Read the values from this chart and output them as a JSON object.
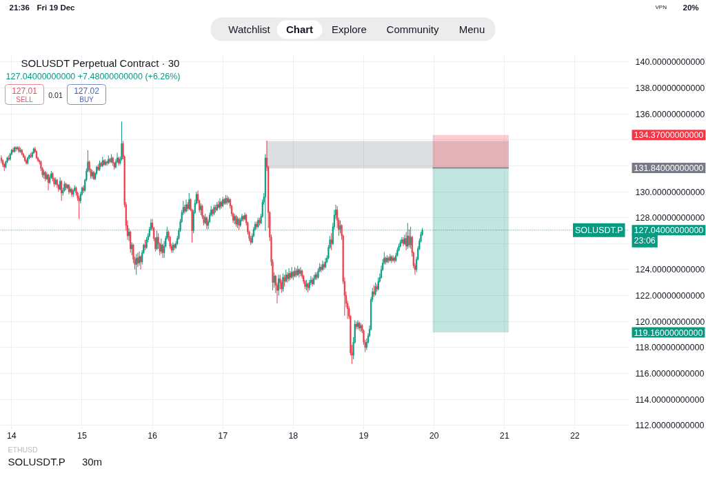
{
  "chart_data": {
    "type": "candlestick",
    "title": "SOLUSDT Perpetual Contract · 30",
    "subtitle": "127.04000000000 +7.48000000000 (+6.26%)",
    "annotations": [
      "134.37000000000",
      "131.84000000000",
      "127.04000000000",
      "119.16000000000",
      "23:06",
      "127.01",
      "SELL",
      "0.01",
      "127.02",
      "BUY",
      "21:36",
      "Fri 19 Dec",
      "VPN",
      "20%",
      "Watchlist",
      "Chart",
      "Explore",
      "Community",
      "Menu",
      "ETHUSD",
      "SOLUSDT.P",
      "30m"
    ],
    "x": [
      13.854,
      13.875,
      13.896,
      13.917,
      13.938,
      13.958,
      13.979,
      14,
      14.021,
      14.042,
      14.063,
      14.083,
      14.104,
      14.125,
      14.146,
      14.167,
      14.188,
      14.208,
      14.229,
      14.25,
      14.271,
      14.292,
      14.313,
      14.333,
      14.354,
      14.375,
      14.396,
      14.417,
      14.438,
      14.458,
      14.479,
      14.5,
      14.521,
      14.542,
      14.563,
      14.583,
      14.604,
      14.625,
      14.646,
      14.667,
      14.688,
      14.708,
      14.729,
      14.75,
      14.771,
      14.792,
      14.813,
      14.833,
      14.854,
      14.875,
      14.896,
      14.917,
      14.938,
      14.958,
      14.979,
      15,
      15.021,
      15.042,
      15.063,
      15.083,
      15.104,
      15.125,
      15.146,
      15.167,
      15.188,
      15.208,
      15.229,
      15.25,
      15.271,
      15.292,
      15.313,
      15.333,
      15.354,
      15.375,
      15.396,
      15.417,
      15.438,
      15.458,
      15.479,
      15.5,
      15.521,
      15.542,
      15.563,
      15.583,
      15.604,
      15.625,
      15.646,
      15.667,
      15.688,
      15.708,
      15.729,
      15.75,
      15.771,
      15.792,
      15.813,
      15.833,
      15.854,
      15.875,
      15.896,
      15.917,
      15.938,
      15.958,
      15.979,
      16,
      16.021,
      16.042,
      16.063,
      16.083,
      16.104,
      16.125,
      16.146,
      16.167,
      16.188,
      16.208,
      16.229,
      16.25,
      16.271,
      16.292,
      16.313,
      16.333,
      16.354,
      16.375,
      16.396,
      16.417,
      16.438,
      16.458,
      16.479,
      16.5,
      16.521,
      16.542,
      16.563,
      16.583,
      16.604,
      16.625,
      16.646,
      16.667,
      16.688,
      16.708,
      16.729,
      16.75,
      16.771,
      16.792,
      16.813,
      16.833,
      16.854,
      16.875,
      16.896,
      16.917,
      16.938,
      16.958,
      16.979,
      17,
      17.021,
      17.042,
      17.063,
      17.083,
      17.104,
      17.125,
      17.146,
      17.167,
      17.188,
      17.208,
      17.229,
      17.25,
      17.271,
      17.292,
      17.313,
      17.333,
      17.354,
      17.375,
      17.396,
      17.417,
      17.438,
      17.458,
      17.479,
      17.5,
      17.521,
      17.542,
      17.563,
      17.583,
      17.604,
      17.625,
      17.646,
      17.667,
      17.688,
      17.708,
      17.729,
      17.75,
      17.771,
      17.792,
      17.813,
      17.833,
      17.854,
      17.875,
      17.896,
      17.917,
      17.938,
      17.958,
      17.979,
      18,
      18.021,
      18.042,
      18.063,
      18.083,
      18.104,
      18.125,
      18.146,
      18.167,
      18.188,
      18.208,
      18.229,
      18.25,
      18.271,
      18.292,
      18.313,
      18.333,
      18.354,
      18.375,
      18.396,
      18.417,
      18.438,
      18.458,
      18.479,
      18.5,
      18.521,
      18.542,
      18.563,
      18.583,
      18.604,
      18.625,
      18.646,
      18.667,
      18.688,
      18.708,
      18.729,
      18.75,
      18.771,
      18.792,
      18.813,
      18.833,
      18.854,
      18.875,
      18.896,
      18.917,
      18.938,
      18.958,
      18.979,
      19,
      19.021,
      19.042,
      19.063,
      19.083,
      19.104,
      19.125,
      19.146,
      19.167,
      19.188,
      19.208,
      19.229,
      19.25,
      19.271,
      19.292,
      19.313,
      19.333,
      19.354,
      19.375,
      19.396,
      19.417,
      19.438,
      19.458,
      19.479,
      19.5,
      19.521,
      19.542,
      19.563,
      19.583,
      19.604,
      19.625,
      19.646,
      19.667,
      19.688,
      19.708,
      19.729,
      19.75,
      19.771,
      19.792,
      19.813,
      19.833
    ],
    "ohlc": [
      [
        132.6,
        132.8,
        132.2,
        132.4
      ],
      [
        132.4,
        132.5,
        131.9,
        132.1
      ],
      [
        132.1,
        132.2,
        131.6,
        131.9
      ],
      [
        131.9,
        132.4,
        131.8,
        132.3
      ],
      [
        132.3,
        132.7,
        132.2,
        132.6
      ],
      [
        132.6,
        132.8,
        132.4,
        132.5
      ],
      [
        132.5,
        133.0,
        132.4,
        132.9
      ],
      [
        132.9,
        133.3,
        132.8,
        133.2
      ],
      [
        133.2,
        133.4,
        133.0,
        133.1
      ],
      [
        133.1,
        133.5,
        133.0,
        133.4
      ],
      [
        133.4,
        133.5,
        133.1,
        133.3
      ],
      [
        133.3,
        133.5,
        133.2,
        133.4
      ],
      [
        133.4,
        133.5,
        133.0,
        133.1
      ],
      [
        133.1,
        133.4,
        133.0,
        133.2
      ],
      [
        133.2,
        133.3,
        132.8,
        132.9
      ],
      [
        132.9,
        133.0,
        132.6,
        132.7
      ],
      [
        132.7,
        132.8,
        132.3,
        132.4
      ],
      [
        132.4,
        132.5,
        132.1,
        132.2
      ],
      [
        132.2,
        132.7,
        132.1,
        132.6
      ],
      [
        132.6,
        132.9,
        132.5,
        132.8
      ],
      [
        132.8,
        133.0,
        132.6,
        132.7
      ],
      [
        132.7,
        133.1,
        132.6,
        133.0
      ],
      [
        133.0,
        133.4,
        132.9,
        133.3
      ],
      [
        133.3,
        133.45,
        133.0,
        133.1
      ],
      [
        133.1,
        133.2,
        132.5,
        132.6
      ],
      [
        132.6,
        132.7,
        132.3,
        132.4
      ],
      [
        132.4,
        132.5,
        132.1,
        132.3
      ],
      [
        132.3,
        132.4,
        131.6,
        131.8
      ],
      [
        131.8,
        131.9,
        131.1,
        131.3
      ],
      [
        131.3,
        131.7,
        131.0,
        131.5
      ],
      [
        131.5,
        131.6,
        130.8,
        131.0
      ],
      [
        131.0,
        131.5,
        130.9,
        131.3
      ],
      [
        131.3,
        131.4,
        130.1,
        130.7
      ],
      [
        130.7,
        131.3,
        130.6,
        131.1
      ],
      [
        131.1,
        131.6,
        131.0,
        131.4
      ],
      [
        131.4,
        131.5,
        130.8,
        131.0
      ],
      [
        131.0,
        131.1,
        130.4,
        130.6
      ],
      [
        130.6,
        131.1,
        130.5,
        130.9
      ],
      [
        130.9,
        131.0,
        130.3,
        130.5
      ],
      [
        130.5,
        130.6,
        130.0,
        130.2
      ],
      [
        130.2,
        131.1,
        130.1,
        130.8
      ],
      [
        130.8,
        130.9,
        129.3,
        129.9
      ],
      [
        129.9,
        130.3,
        129.7,
        130.1
      ],
      [
        130.1,
        130.8,
        130.0,
        130.6
      ],
      [
        130.6,
        130.7,
        130.1,
        130.3
      ],
      [
        130.3,
        130.6,
        130.2,
        130.5
      ],
      [
        130.5,
        130.6,
        129.8,
        130.0
      ],
      [
        130.0,
        130.4,
        129.9,
        130.2
      ],
      [
        130.2,
        130.3,
        129.6,
        129.8
      ],
      [
        129.8,
        130.2,
        129.6,
        130.1
      ],
      [
        130.1,
        130.5,
        130.0,
        130.3
      ],
      [
        130.3,
        130.4,
        129.7,
        129.9
      ],
      [
        129.9,
        130.0,
        129.3,
        129.5
      ],
      [
        129.5,
        129.7,
        127.9,
        129.3
      ],
      [
        129.3,
        130.0,
        129.1,
        129.8
      ],
      [
        129.8,
        130.4,
        129.7,
        130.3
      ],
      [
        130.3,
        130.5,
        129.9,
        130.1
      ],
      [
        130.1,
        131.0,
        130.0,
        130.9
      ],
      [
        130.9,
        131.8,
        130.8,
        131.6
      ],
      [
        131.6,
        133.2,
        131.5,
        132.3
      ],
      [
        132.3,
        132.4,
        131.5,
        131.7
      ],
      [
        131.7,
        131.8,
        131.0,
        131.2
      ],
      [
        131.2,
        131.7,
        131.0,
        131.5
      ],
      [
        131.5,
        131.6,
        130.9,
        131.0
      ],
      [
        131.0,
        131.5,
        130.9,
        131.4
      ],
      [
        131.4,
        132.0,
        131.3,
        131.9
      ],
      [
        131.9,
        132.1,
        131.6,
        131.7
      ],
      [
        131.7,
        132.4,
        131.6,
        132.2
      ],
      [
        132.2,
        132.3,
        131.9,
        132.0
      ],
      [
        132.0,
        132.7,
        131.9,
        132.4
      ],
      [
        132.4,
        132.5,
        132.0,
        132.1
      ],
      [
        132.1,
        132.5,
        132.0,
        132.3
      ],
      [
        132.3,
        132.4,
        132.0,
        132.2
      ],
      [
        132.2,
        132.8,
        132.1,
        132.5
      ],
      [
        132.5,
        132.6,
        132.2,
        132.3
      ],
      [
        132.3,
        132.9,
        132.2,
        132.6
      ],
      [
        132.6,
        132.7,
        132.0,
        132.2
      ],
      [
        132.2,
        132.3,
        131.7,
        131.9
      ],
      [
        131.9,
        132.5,
        131.8,
        132.3
      ],
      [
        132.3,
        133.0,
        132.2,
        132.6
      ],
      [
        132.6,
        132.7,
        132.0,
        132.2
      ],
      [
        132.2,
        132.7,
        132.1,
        132.5
      ],
      [
        132.5,
        135.4,
        132.4,
        133.7
      ],
      [
        133.7,
        133.9,
        132.5,
        132.7
      ],
      [
        132.7,
        132.8,
        128.8,
        129.0
      ],
      [
        129.0,
        129.2,
        127.0,
        127.4
      ],
      [
        127.4,
        127.8,
        126.3,
        126.6
      ],
      [
        126.6,
        127.2,
        126.2,
        126.9
      ],
      [
        126.9,
        127.0,
        125.3,
        125.6
      ],
      [
        125.6,
        126.1,
        125.1,
        125.9
      ],
      [
        125.9,
        126.0,
        124.5,
        124.8
      ],
      [
        124.8,
        125.0,
        124.0,
        124.4
      ],
      [
        124.4,
        125.2,
        123.6,
        124.9
      ],
      [
        124.9,
        125.3,
        124.2,
        124.5
      ],
      [
        124.5,
        125.4,
        124.3,
        125.0
      ],
      [
        125.0,
        125.1,
        124.0,
        124.6
      ],
      [
        124.6,
        125.5,
        124.4,
        125.3
      ],
      [
        125.3,
        126.0,
        125.2,
        125.9
      ],
      [
        125.9,
        126.3,
        125.5,
        125.7
      ],
      [
        125.7,
        126.5,
        125.6,
        126.3
      ],
      [
        126.3,
        126.8,
        126.1,
        126.6
      ],
      [
        126.6,
        127.3,
        126.5,
        127.1
      ],
      [
        127.1,
        127.9,
        127.0,
        127.6
      ],
      [
        127.6,
        127.9,
        127.0,
        127.2
      ],
      [
        127.2,
        127.3,
        126.2,
        126.4
      ],
      [
        126.4,
        126.5,
        125.4,
        125.6
      ],
      [
        125.6,
        127.0,
        125.5,
        126.5
      ],
      [
        126.5,
        126.8,
        125.6,
        126.0
      ],
      [
        126.0,
        126.1,
        125.1,
        125.4
      ],
      [
        125.4,
        126.4,
        125.2,
        125.9
      ],
      [
        125.9,
        126.0,
        124.9,
        125.3
      ],
      [
        125.3,
        126.2,
        124.9,
        125.8
      ],
      [
        125.8,
        126.6,
        125.7,
        126.4
      ],
      [
        126.4,
        127.3,
        126.3,
        126.9
      ],
      [
        126.9,
        127.0,
        126.2,
        126.5
      ],
      [
        126.5,
        126.6,
        125.6,
        125.8
      ],
      [
        125.8,
        126.0,
        125.3,
        125.5
      ],
      [
        125.5,
        126.1,
        125.3,
        125.9
      ],
      [
        125.9,
        126.0,
        125.5,
        125.7
      ],
      [
        125.7,
        126.2,
        125.6,
        126.0
      ],
      [
        126.0,
        126.6,
        125.9,
        126.4
      ],
      [
        126.4,
        127.2,
        126.3,
        127.0
      ],
      [
        127.0,
        127.9,
        126.9,
        127.7
      ],
      [
        127.7,
        128.6,
        127.6,
        128.4
      ],
      [
        128.4,
        129.3,
        128.2,
        128.8
      ],
      [
        128.8,
        129.0,
        128.3,
        128.5
      ],
      [
        128.5,
        129.4,
        128.4,
        129.0
      ],
      [
        129.0,
        129.2,
        128.5,
        128.7
      ],
      [
        128.7,
        129.9,
        128.6,
        129.4
      ],
      [
        129.4,
        129.5,
        128.5,
        128.6
      ],
      [
        128.6,
        128.7,
        126.1,
        127.0
      ],
      [
        127.0,
        128.6,
        126.8,
        128.4
      ],
      [
        128.4,
        129.4,
        128.3,
        129.1
      ],
      [
        129.1,
        130.0,
        129.0,
        129.8
      ],
      [
        129.8,
        130.1,
        129.1,
        129.3
      ],
      [
        129.3,
        129.4,
        128.4,
        128.6
      ],
      [
        128.6,
        129.1,
        128.2,
        128.9
      ],
      [
        128.9,
        129.0,
        127.9,
        128.1
      ],
      [
        128.1,
        128.2,
        127.4,
        127.6
      ],
      [
        127.6,
        128.3,
        127.5,
        128.0
      ],
      [
        128.0,
        128.1,
        127.1,
        127.4
      ],
      [
        127.4,
        127.9,
        127.1,
        127.7
      ],
      [
        127.7,
        128.4,
        127.6,
        128.2
      ],
      [
        128.2,
        128.9,
        128.1,
        128.6
      ],
      [
        128.6,
        128.7,
        128.1,
        128.3
      ],
      [
        128.3,
        129.0,
        128.2,
        128.8
      ],
      [
        128.8,
        129.0,
        128.4,
        128.6
      ],
      [
        128.6,
        129.2,
        128.5,
        129.0
      ],
      [
        129.0,
        129.3,
        128.7,
        128.8
      ],
      [
        128.8,
        129.5,
        128.6,
        129.2
      ],
      [
        129.2,
        129.3,
        128.7,
        128.9
      ],
      [
        128.9,
        129.6,
        128.8,
        129.4
      ],
      [
        129.4,
        129.5,
        129.0,
        129.1
      ],
      [
        129.1,
        129.75,
        129.0,
        129.5
      ],
      [
        129.5,
        129.7,
        129.0,
        129.2
      ],
      [
        129.2,
        129.6,
        129.1,
        129.4
      ],
      [
        129.4,
        129.5,
        128.7,
        128.9
      ],
      [
        128.9,
        129.0,
        128.1,
        128.3
      ],
      [
        128.3,
        128.4,
        127.6,
        127.8
      ],
      [
        127.8,
        128.3,
        127.5,
        128.1
      ],
      [
        128.1,
        128.2,
        127.3,
        127.5
      ],
      [
        127.5,
        128.1,
        127.2,
        127.9
      ],
      [
        127.9,
        128.0,
        127.05,
        127.4
      ],
      [
        127.4,
        128.0,
        127.3,
        127.8
      ],
      [
        127.8,
        128.3,
        127.7,
        128.1
      ],
      [
        128.1,
        128.2,
        127.7,
        127.9
      ],
      [
        127.9,
        128.4,
        127.8,
        128.2
      ],
      [
        128.2,
        128.3,
        127.4,
        127.6
      ],
      [
        127.6,
        127.7,
        126.7,
        126.9
      ],
      [
        126.9,
        127.0,
        126.2,
        126.4
      ],
      [
        126.4,
        126.6,
        125.9,
        126.1
      ],
      [
        126.1,
        126.8,
        126.0,
        126.6
      ],
      [
        126.6,
        127.3,
        126.5,
        127.1
      ],
      [
        127.1,
        127.7,
        127.0,
        127.5
      ],
      [
        127.5,
        127.7,
        127.1,
        127.3
      ],
      [
        127.3,
        128.0,
        127.2,
        127.8
      ],
      [
        127.8,
        128.0,
        127.4,
        127.6
      ],
      [
        127.6,
        128.3,
        127.5,
        128.1
      ],
      [
        128.1,
        129.4,
        128.0,
        129.2
      ],
      [
        129.2,
        129.9,
        129.0,
        129.6
      ],
      [
        129.6,
        132.9,
        127.0,
        132.6
      ],
      [
        132.6,
        133.95,
        131.6,
        131.9
      ],
      [
        131.9,
        132.0,
        127.2,
        128.4
      ],
      [
        128.4,
        128.5,
        126.2,
        126.5
      ],
      [
        126.5,
        126.7,
        124.3,
        124.6
      ],
      [
        124.6,
        124.8,
        122.4,
        123.0
      ],
      [
        123.0,
        123.8,
        122.6,
        123.5
      ],
      [
        123.5,
        123.6,
        122.2,
        122.8
      ],
      [
        122.8,
        123.0,
        121.4,
        122.4
      ],
      [
        122.4,
        123.6,
        122.0,
        123.3
      ],
      [
        123.3,
        123.6,
        122.5,
        123.0
      ],
      [
        123.0,
        123.2,
        122.2,
        122.5
      ],
      [
        122.5,
        123.7,
        122.3,
        123.4
      ],
      [
        123.4,
        123.6,
        122.7,
        123.1
      ],
      [
        123.1,
        124.0,
        123.0,
        123.6
      ],
      [
        123.6,
        123.8,
        123.0,
        123.3
      ],
      [
        123.3,
        124.1,
        123.1,
        123.7
      ],
      [
        123.7,
        123.9,
        123.2,
        123.4
      ],
      [
        123.4,
        124.2,
        123.3,
        123.8
      ],
      [
        123.8,
        123.9,
        123.2,
        123.5
      ],
      [
        123.5,
        124.2,
        123.4,
        123.9
      ],
      [
        123.9,
        124.1,
        123.4,
        123.6
      ],
      [
        123.6,
        124.3,
        123.5,
        124.0
      ],
      [
        124.0,
        124.1,
        123.4,
        123.7
      ],
      [
        123.7,
        124.2,
        123.5,
        123.9
      ],
      [
        123.9,
        124.0,
        123.3,
        123.5
      ],
      [
        123.5,
        123.6,
        122.9,
        123.1
      ],
      [
        123.1,
        123.2,
        122.5,
        122.7
      ],
      [
        122.7,
        123.2,
        122.4,
        122.9
      ],
      [
        122.9,
        123.0,
        122.25,
        122.6
      ],
      [
        122.6,
        123.2,
        122.4,
        123.0
      ],
      [
        123.0,
        123.5,
        122.8,
        123.2
      ],
      [
        123.2,
        123.4,
        122.7,
        122.9
      ],
      [
        122.9,
        123.6,
        122.8,
        123.3
      ],
      [
        123.3,
        123.8,
        123.2,
        123.6
      ],
      [
        123.6,
        123.8,
        123.2,
        123.4
      ],
      [
        123.4,
        124.1,
        123.3,
        123.9
      ],
      [
        123.9,
        124.5,
        123.8,
        124.2
      ],
      [
        124.2,
        124.4,
        123.8,
        124.0
      ],
      [
        124.0,
        124.7,
        123.9,
        124.4
      ],
      [
        124.4,
        124.6,
        124.0,
        124.2
      ],
      [
        124.2,
        124.9,
        124.1,
        124.6
      ],
      [
        124.6,
        125.1,
        124.5,
        124.9
      ],
      [
        124.9,
        125.9,
        124.8,
        125.7
      ],
      [
        125.7,
        126.6,
        125.6,
        126.3
      ],
      [
        126.3,
        126.8,
        125.5,
        126.0
      ],
      [
        126.0,
        127.6,
        125.9,
        127.3
      ],
      [
        127.3,
        128.6,
        127.1,
        128.2
      ],
      [
        128.2,
        129.0,
        127.9,
        128.6
      ],
      [
        128.6,
        128.9,
        127.2,
        127.8
      ],
      [
        127.8,
        128.0,
        126.6,
        127.1
      ],
      [
        127.1,
        127.8,
        126.8,
        127.4
      ],
      [
        127.4,
        127.5,
        126.3,
        126.6
      ],
      [
        126.6,
        126.7,
        122.9,
        123.1
      ],
      [
        123.1,
        123.4,
        120.45,
        122.0
      ],
      [
        122.0,
        122.3,
        121.1,
        121.4
      ],
      [
        121.4,
        121.6,
        120.2,
        121.0
      ],
      [
        121.0,
        121.2,
        120.2,
        120.4
      ],
      [
        120.4,
        120.5,
        117.4,
        117.6
      ],
      [
        117.6,
        118.2,
        116.75,
        117.4
      ],
      [
        117.4,
        118.8,
        117.1,
        118.4
      ],
      [
        118.4,
        120.1,
        118.3,
        119.8
      ],
      [
        119.8,
        120.0,
        119.4,
        119.6
      ],
      [
        119.6,
        120.1,
        119.4,
        119.9
      ],
      [
        119.9,
        120.0,
        119.3,
        119.5
      ],
      [
        119.5,
        119.9,
        119.2,
        119.7
      ],
      [
        119.7,
        119.8,
        119.1,
        119.3
      ],
      [
        119.3,
        119.4,
        118.2,
        118.4
      ],
      [
        118.4,
        118.6,
        117.65,
        118.0
      ],
      [
        118.0,
        118.7,
        117.8,
        118.4
      ],
      [
        118.4,
        119.1,
        118.3,
        118.9
      ],
      [
        118.9,
        119.7,
        118.8,
        119.4
      ],
      [
        119.4,
        121.9,
        119.3,
        121.7
      ],
      [
        121.7,
        122.6,
        121.5,
        122.3
      ],
      [
        122.3,
        122.8,
        121.9,
        122.1
      ],
      [
        122.1,
        123.0,
        122.0,
        122.7
      ],
      [
        122.7,
        122.9,
        122.3,
        122.5
      ],
      [
        122.5,
        123.4,
        122.4,
        123.1
      ],
      [
        123.1,
        123.7,
        123.0,
        123.4
      ],
      [
        123.4,
        124.3,
        123.3,
        124.0
      ],
      [
        124.0,
        124.8,
        123.9,
        124.5
      ],
      [
        124.5,
        125.35,
        124.4,
        124.9
      ],
      [
        124.9,
        125.0,
        124.4,
        124.6
      ],
      [
        124.6,
        125.1,
        124.5,
        124.9
      ],
      [
        124.9,
        125.0,
        124.5,
        124.7
      ],
      [
        124.7,
        125.2,
        124.6,
        125.0
      ],
      [
        125.0,
        125.1,
        124.5,
        124.7
      ],
      [
        124.7,
        125.1,
        124.6,
        124.9
      ],
      [
        124.9,
        125.0,
        124.5,
        124.7
      ],
      [
        124.7,
        125.3,
        124.6,
        125.1
      ],
      [
        125.1,
        125.7,
        125.0,
        125.5
      ],
      [
        125.5,
        126.0,
        125.4,
        125.8
      ],
      [
        125.8,
        126.3,
        125.7,
        126.1
      ],
      [
        126.1,
        126.5,
        126.0,
        126.3
      ],
      [
        126.3,
        126.5,
        125.8,
        126.0
      ],
      [
        126.0,
        126.7,
        125.9,
        126.4
      ],
      [
        126.4,
        126.9,
        125.5,
        125.8
      ],
      [
        125.8,
        127.6,
        125.6,
        126.6
      ],
      [
        126.6,
        127.1,
        125.7,
        125.9
      ],
      [
        125.9,
        127.3,
        125.6,
        126.5
      ],
      [
        126.5,
        126.6,
        125.0,
        125.3
      ],
      [
        125.3,
        125.4,
        124.1,
        124.3
      ],
      [
        124.3,
        124.5,
        123.6,
        124.0
      ],
      [
        124.0,
        125.0,
        123.8,
        124.8
      ],
      [
        124.8,
        125.8,
        124.7,
        125.6
      ],
      [
        125.6,
        126.4,
        125.5,
        126.2
      ],
      [
        126.2,
        126.9,
        126.1,
        126.7
      ],
      [
        126.7,
        127.2,
        126.6,
        127.04
      ]
    ],
    "series": [
      {
        "type": "line",
        "color": "#787b86",
        "x": [
          17.62,
          21.06
        ],
        "values": [
          null,
          null
        ],
        "lower": [
          131.8,
          131.8
        ],
        "upper": [
          133.9,
          133.9
        ]
      },
      {
        "type": "line",
        "color": "#f23645",
        "x": [
          19.98,
          21.06
        ],
        "values": [
          null,
          null
        ],
        "lower": [
          131.84,
          131.84
        ],
        "upper": [
          134.37,
          134.37
        ]
      },
      {
        "type": "line",
        "color": "#089981",
        "x": [
          19.98,
          21.06
        ],
        "values": [
          null,
          null
        ],
        "lower": [
          119.16,
          119.16
        ],
        "upper": [
          131.84,
          131.84
        ]
      },
      {
        "type": "line",
        "color": "#787b86",
        "x": [
          19.98,
          21.06
        ],
        "values": [
          131.84,
          131.84
        ]
      }
    ],
    "ref_lines": [
      {
        "axis": "y",
        "value": 127.04,
        "label": "SOLUSDT.P",
        "color": "#089981",
        "line_style": "dotted"
      }
    ],
    "xlim": [
      13.84,
      22.77
    ],
    "ylim": [
      111.7,
      140.6
    ],
    "xticks": [
      14,
      15,
      16,
      17,
      18,
      19,
      20,
      21,
      22
    ],
    "yticks": [
      {
        "value": 112,
        "label": "112.00000000000"
      },
      {
        "value": 114,
        "label": "114.00000000000"
      },
      {
        "value": 116,
        "label": "116.00000000000"
      },
      {
        "value": 118,
        "label": "118.00000000000"
      },
      {
        "value": 120,
        "label": "120.00000000000"
      },
      {
        "value": 122,
        "label": "122.00000000000"
      },
      {
        "value": 124,
        "label": "124.00000000000"
      },
      {
        "value": 126,
        "label": null
      },
      {
        "value": 128,
        "label": "128.00000000000"
      },
      {
        "value": 130,
        "label": "130.00000000000"
      },
      {
        "value": 132,
        "label": null
      },
      {
        "value": 134,
        "label": null
      },
      {
        "value": 136,
        "label": "136.00000000000"
      },
      {
        "value": 138,
        "label": "138.00000000000"
      },
      {
        "value": 140,
        "label": "140.00000000000"
      }
    ],
    "grid": true
  }
}
